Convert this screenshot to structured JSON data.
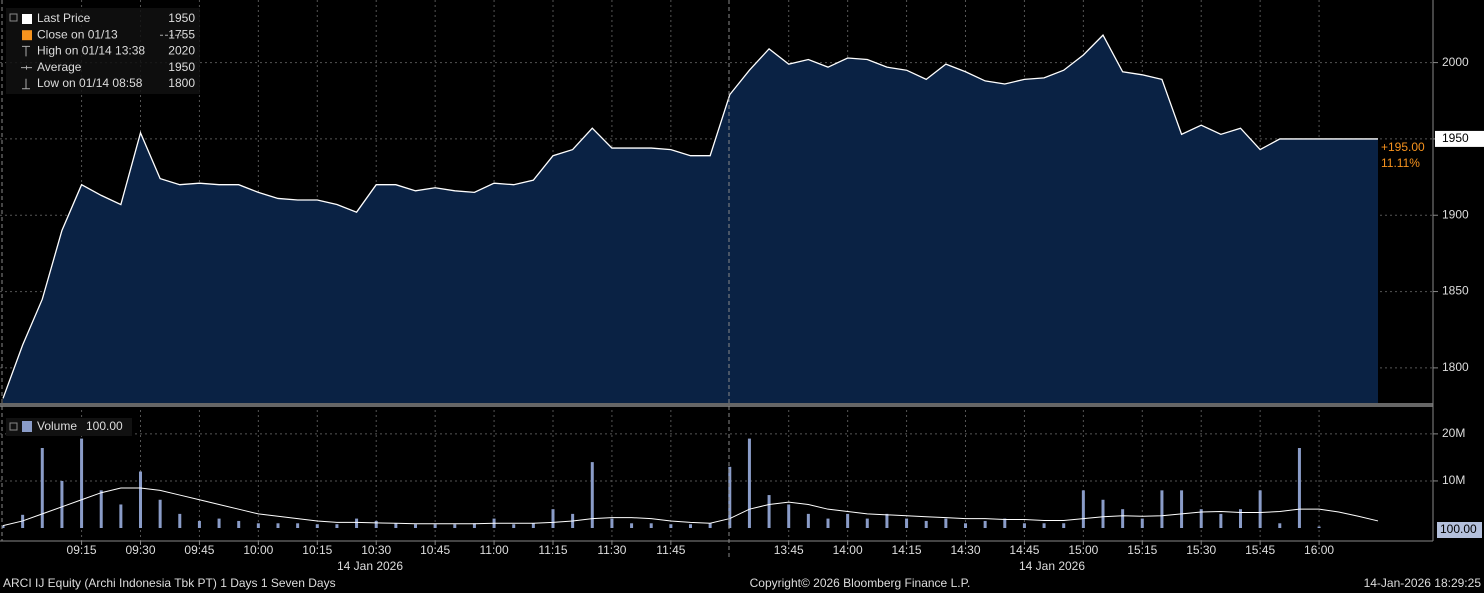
{
  "chart_data": [
    {
      "type": "area",
      "color": "#ffffff",
      "fill": "#0a2244",
      "values": [
        1780,
        1815,
        1845,
        1890,
        1920,
        1913,
        1907,
        1954,
        1924,
        1920,
        1921,
        1920,
        1920,
        1915,
        1911,
        1910,
        1910,
        1907,
        1902,
        1920,
        1920,
        1916,
        1918,
        1916,
        1915,
        1921,
        1920,
        1923,
        1939,
        1943,
        1957,
        1944,
        1944,
        1944,
        1943,
        1939,
        1939,
        1979,
        1995,
        2009,
        1999,
        2002,
        1997,
        2003,
        2002,
        1997,
        1995,
        1989,
        1999,
        1994,
        1988,
        1986,
        1989,
        1990,
        1995,
        2005,
        2018,
        1994,
        1992,
        1989,
        1953,
        1959,
        1953,
        1957,
        1943,
        1950,
        1950,
        1950,
        1950,
        1950,
        1950
      ],
      "ylim": [
        1777,
        2041
      ],
      "yticks": [
        1800,
        1850,
        1900,
        1950,
        2000
      ],
      "grid": true,
      "legend": [
        {
          "label": "Last Price",
          "value": 1950,
          "color": "#ffffff"
        },
        {
          "label": "Close on 01/13",
          "value": 1755,
          "color": "#f7931e"
        },
        {
          "label": "High on 01/14 13:38",
          "value": 2020
        },
        {
          "label": "Average",
          "value": 1950
        },
        {
          "label": "Low on 01/14 08:58",
          "value": 1800
        }
      ],
      "change": {
        "value": 195,
        "label": "+195.00"
      },
      "change_pct": {
        "value": 11.11,
        "label": "11.11%"
      }
    },
    {
      "type": "bar",
      "categories": [
        null,
        null,
        null,
        null,
        "09:15",
        null,
        null,
        "09:30",
        null,
        null,
        "09:45",
        null,
        null,
        "10:00",
        null,
        null,
        "10:15",
        null,
        null,
        "10:30",
        null,
        null,
        "10:45",
        null,
        null,
        "11:00",
        null,
        null,
        "11:15",
        null,
        null,
        "11:30",
        null,
        null,
        "11:45",
        null,
        null,
        null,
        null,
        null,
        "13:45",
        null,
        null,
        "14:00",
        null,
        null,
        "14:15",
        null,
        null,
        "14:30",
        null,
        null,
        "14:45",
        null,
        null,
        "15:00",
        null,
        null,
        "15:15",
        null,
        null,
        "15:30",
        null,
        null,
        "15:45",
        null,
        null,
        "16:00",
        null,
        null,
        null
      ],
      "series": [
        {
          "name": "Volume",
          "color": "#8a9cc8",
          "last": {
            "value": 100,
            "label": "100.00"
          },
          "values": [
            500000,
            2800000,
            17000000,
            10000000,
            19000000,
            8000000,
            5000000,
            12000000,
            6000000,
            3000000,
            1500000,
            2000000,
            1500000,
            1000000,
            1000000,
            1000000,
            800000,
            800000,
            2000000,
            1500000,
            1000000,
            800000,
            800000,
            800000,
            1000000,
            2000000,
            800000,
            1000000,
            4000000,
            3000000,
            14000000,
            2000000,
            1000000,
            1000000,
            800000,
            800000,
            1000000,
            13000000,
            19000000,
            7000000,
            5000000,
            3000000,
            2000000,
            3000000,
            2000000,
            3000000,
            2000000,
            1500000,
            2000000,
            1000000,
            1500000,
            2000000,
            1000000,
            1000000,
            1000000,
            8000000,
            6000000,
            4000000,
            2000000,
            8000000,
            8000000,
            4000000,
            3000000,
            4000000,
            8000000,
            1000000,
            17000000,
            300000,
            0,
            0,
            0
          ]
        },
        {
          "type": "line",
          "color": "#ffffff",
          "values": [
            500000,
            1500000,
            3000000,
            4500000,
            6000000,
            7500000,
            8500000,
            8500000,
            8000000,
            7000000,
            6000000,
            5000000,
            4000000,
            3000000,
            2500000,
            2000000,
            1500000,
            1200000,
            1200000,
            1100000,
            1000000,
            900000,
            900000,
            900000,
            900000,
            1000000,
            1000000,
            1000000,
            1200000,
            1500000,
            2000000,
            2200000,
            2200000,
            2000000,
            1500000,
            1200000,
            1000000,
            2000000,
            4000000,
            5000000,
            5500000,
            5000000,
            4000000,
            3500000,
            3000000,
            2800000,
            2600000,
            2400000,
            2200000,
            2000000,
            2000000,
            1800000,
            1800000,
            1600000,
            1600000,
            2000000,
            2400000,
            2600000,
            2500000,
            2600000,
            3000000,
            3400000,
            3500000,
            3300000,
            3300000,
            3500000,
            4000000,
            4000000,
            3400000,
            2500000,
            1500000
          ]
        }
      ],
      "ylim": [
        0,
        25500000
      ],
      "yticks": [
        {
          "value": 10000000,
          "label": "10M"
        },
        {
          "value": 20000000,
          "label": "20M"
        }
      ],
      "grid": true,
      "date_labels": [
        "14 Jan 2026",
        "14 Jan 2026"
      ]
    }
  ],
  "footer": {
    "left": "ARCI IJ Equity (Archi Indonesia Tbk PT) 1 Days 1 Seven Days",
    "center": "Copyright© 2026 Bloomberg Finance L.P.",
    "right": "14-Jan-2026 18:29:25"
  }
}
